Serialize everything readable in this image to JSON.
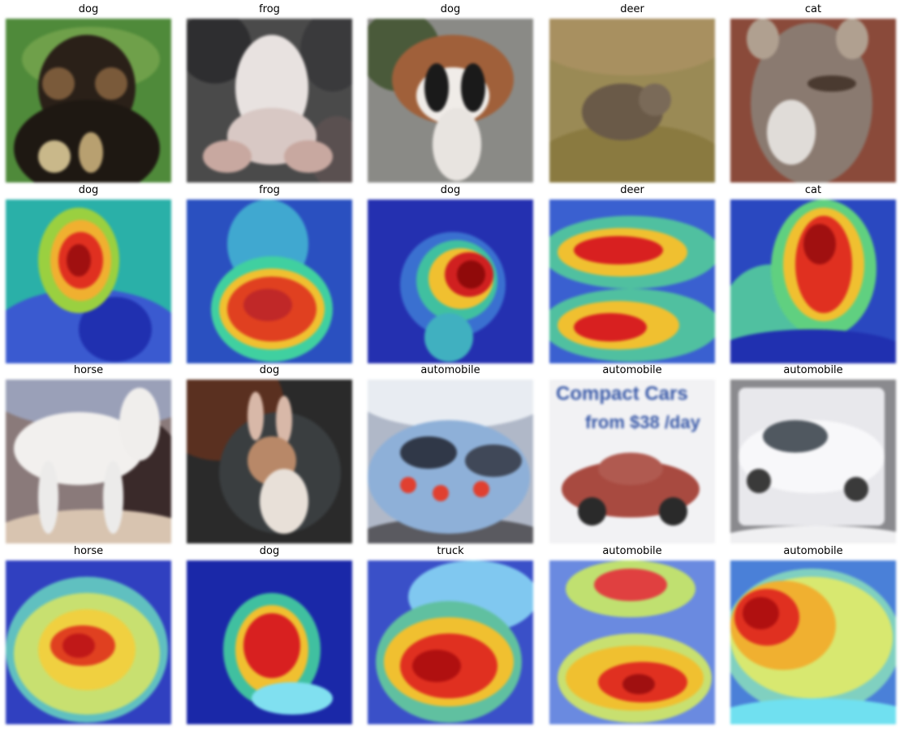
{
  "grid": {
    "columns": 5,
    "rows": [
      {
        "kind": "photo",
        "cells": [
          {
            "label": "dog",
            "icon": "dog-photo",
            "bg": "#4f8a3a"
          },
          {
            "label": "frog",
            "icon": "frog-photo",
            "bg": "#4a4a4a"
          },
          {
            "label": "dog",
            "icon": "dog-photo",
            "bg": "#8a7a6a"
          },
          {
            "label": "deer",
            "icon": "deer-photo",
            "bg": "#9a8a55"
          },
          {
            "label": "cat",
            "icon": "cat-photo",
            "bg": "#8a4a3a"
          }
        ]
      },
      {
        "kind": "heatmap",
        "cells": [
          {
            "label": "dog",
            "icon": "grad-cam-heatmap"
          },
          {
            "label": "frog",
            "icon": "grad-cam-heatmap"
          },
          {
            "label": "dog",
            "icon": "grad-cam-heatmap"
          },
          {
            "label": "deer",
            "icon": "grad-cam-heatmap"
          },
          {
            "label": "cat",
            "icon": "grad-cam-heatmap"
          }
        ]
      },
      {
        "kind": "photo",
        "cells": [
          {
            "label": "horse",
            "icon": "horse-photo",
            "bg": "#6a5a5a"
          },
          {
            "label": "dog",
            "icon": "dog-photo",
            "bg": "#2a2a2a"
          },
          {
            "label": "automobile",
            "icon": "automobile-photo",
            "bg": "#8ea0c0"
          },
          {
            "label": "automobile",
            "icon": "automobile-photo",
            "bg": "#f2f2f4"
          },
          {
            "label": "automobile",
            "icon": "automobile-photo",
            "bg": "#8a8a8e"
          }
        ]
      },
      {
        "kind": "heatmap",
        "cells": [
          {
            "label": "horse",
            "icon": "grad-cam-heatmap"
          },
          {
            "label": "dog",
            "icon": "grad-cam-heatmap"
          },
          {
            "label": "truck",
            "icon": "grad-cam-heatmap"
          },
          {
            "label": "automobile",
            "icon": "grad-cam-heatmap"
          },
          {
            "label": "automobile",
            "icon": "grad-cam-heatmap"
          }
        ]
      }
    ]
  },
  "photo_text": {
    "ad_line1": "Compact Cars",
    "ad_line2": "from $38 /day"
  }
}
